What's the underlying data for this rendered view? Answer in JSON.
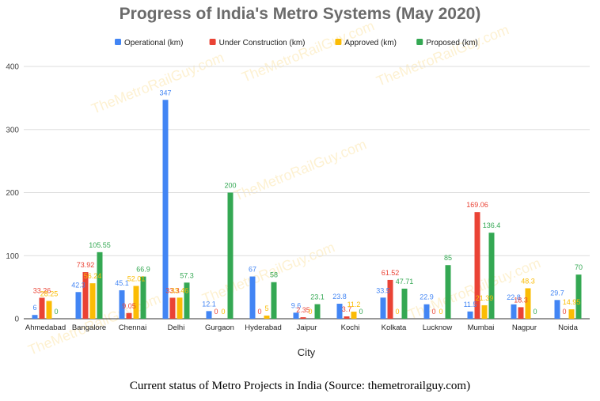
{
  "watermark": "TheMetroRailGuy.com",
  "caption": "Current status of Metro Projects in India (Source: themetrorailguy.com)",
  "chart_data": {
    "type": "bar",
    "title": "Progress of India's Metro Systems (May 2020)",
    "xlabel": "City",
    "ylabel": "",
    "ylim": [
      0,
      400
    ],
    "yticks": [
      0,
      100,
      200,
      300,
      400
    ],
    "grid": true,
    "legend_position": "top",
    "categories": [
      "Ahmedabad",
      "Bangalore",
      "Chennai",
      "Delhi",
      "Gurgaon",
      "Hyderabad",
      "Jaipur",
      "Kochi",
      "Kolkata",
      "Lucknow",
      "Mumbai",
      "Nagpur",
      "Noida"
    ],
    "series": [
      {
        "name": "Operational (km)",
        "color": "#4285f4",
        "values": [
          6,
          42.3,
          45.1,
          347,
          12.1,
          67,
          9.6,
          23.8,
          33.5,
          22.9,
          11.5,
          22.8,
          29.7
        ],
        "labels": [
          "6",
          "42.3",
          "45.1",
          "347",
          "12.1",
          "67",
          "9.6",
          "23.8",
          "33.5",
          "22.9",
          "11.5",
          "22.8",
          "29.7"
        ]
      },
      {
        "name": "Under Construction (km)",
        "color": "#ea4335",
        "values": [
          33.26,
          73.92,
          9.05,
          33.3,
          0,
          0,
          2.35,
          3.7,
          61.52,
          0,
          169.06,
          18.3,
          0
        ],
        "labels": [
          "33.26",
          "73.92",
          "9.05",
          "33.3",
          "0",
          "0",
          "2.35",
          "3.7",
          "61.52",
          "0",
          "169.06",
          "18.3",
          "0"
        ]
      },
      {
        "name": "Approved (km)",
        "color": "#fbbc04",
        "values": [
          28.25,
          56.24,
          52.01,
          33.46,
          0,
          5,
          0,
          11.2,
          0,
          0,
          21.39,
          48.3,
          14.95
        ],
        "labels": [
          "28.25",
          "56.24",
          "52.01",
          "33.46",
          "0",
          "5",
          "0",
          "11.2",
          "0",
          "0",
          "21.39",
          "48.3",
          "14.95"
        ]
      },
      {
        "name": "Proposed (km)",
        "color": "#34a853",
        "values": [
          0,
          105.55,
          66.9,
          57.3,
          200,
          58,
          23.1,
          0,
          47.71,
          85,
          136.4,
          0,
          70
        ],
        "labels": [
          "0",
          "105.55",
          "66.9",
          "57.3",
          "200",
          "58",
          "23.1",
          "0",
          "47.71",
          "85",
          "136.4",
          "0",
          "70"
        ]
      }
    ]
  }
}
